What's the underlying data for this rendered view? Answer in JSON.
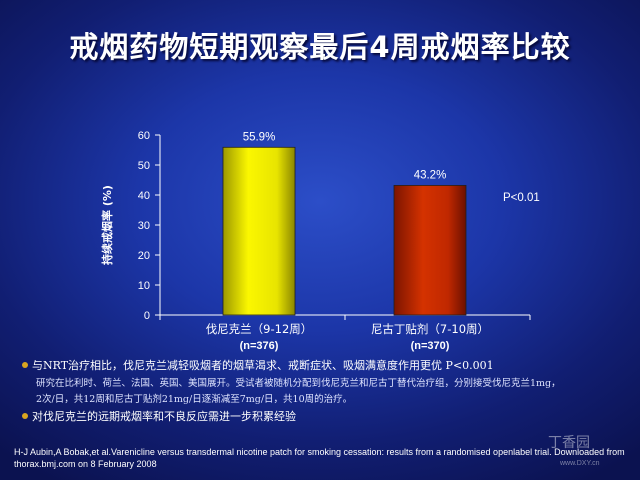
{
  "slide": {
    "title": "戒烟药物短期观察最后4周戒烟率比较"
  },
  "chart_data": {
    "type": "bar",
    "title": "",
    "ylabel": "持续戒烟率 (%)",
    "xlabel": "",
    "ylim": [
      0,
      60
    ],
    "yticks": [
      "0",
      "10",
      "20",
      "30",
      "40",
      "50",
      "60"
    ],
    "categories": [
      "伐尼克兰（9-12周）",
      "尼古丁贴剂（7-10周）"
    ],
    "category_counts": [
      "(n=376)",
      "(n=370)"
    ],
    "values": [
      55.9,
      43.2
    ],
    "value_labels": [
      "55.9%",
      "43.2%"
    ],
    "annotation": "P<0.01",
    "grid": false,
    "colors": {
      "bar1": "#f2ee00",
      "bar2": "#c42800",
      "bullet": "#d9a520"
    }
  },
  "notes": {
    "bullet1": "与NRT治疗相比，伐尼克兰减轻吸烟者的烟草渴求、戒断症状、吸烟满意度作用更优 P<0.001",
    "detail1": "研究在比利时、荷兰、法国、英国、美国展开。受试者被随机分配到伐尼克兰和尼古丁替代治疗组，分别接受伐尼克兰1mg，",
    "detail2": "2次/日，共12周和尼古丁贴剂21mg/日逐渐减至7mg/日，共10周的治疗。",
    "bullet2": "对伐尼克兰的远期戒烟率和不良反应需进一步积累经验"
  },
  "reference": "H-J Aubin,A Bobak,et al.Varenicline versus transdermal nicotine patch for smoking cessation: results from a randomised openlabel trial. Downloaded from thorax.bmj.com on 8 February 2008",
  "watermark": {
    "text": "丁香园",
    "url": "www.DXY.cn"
  }
}
